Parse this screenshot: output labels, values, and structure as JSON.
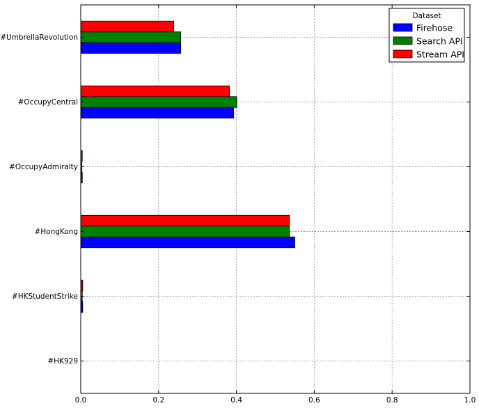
{
  "chart_data": {
    "type": "bar",
    "orientation": "horizontal",
    "title": "",
    "xlabel": "",
    "ylabel": "",
    "xlim": [
      0,
      1.0
    ],
    "xticks": [
      "0.0",
      "0.2",
      "0.4",
      "0.6",
      "0.8",
      "1.0"
    ],
    "grid": true,
    "legend_title": "Dataset",
    "legend_position": "top-right",
    "categories": [
      "#HK929",
      "#HKStudentStrike",
      "#HongKong",
      "#OccupyAdmiralty",
      "#OccupyCentral",
      "#UmbrellaRevolution"
    ],
    "series": [
      {
        "name": "Firehose",
        "color": "#0000ff",
        "values": [
          0.0,
          0.005,
          0.55,
          0.004,
          0.393,
          0.257
        ]
      },
      {
        "name": "Search API",
        "color": "#008000",
        "values": [
          0.0,
          0.004,
          0.536,
          0.003,
          0.401,
          0.257
        ]
      },
      {
        "name": "Stream API",
        "color": "#ff0000",
        "values": [
          0.0,
          0.005,
          0.536,
          0.004,
          0.382,
          0.239
        ]
      }
    ]
  }
}
